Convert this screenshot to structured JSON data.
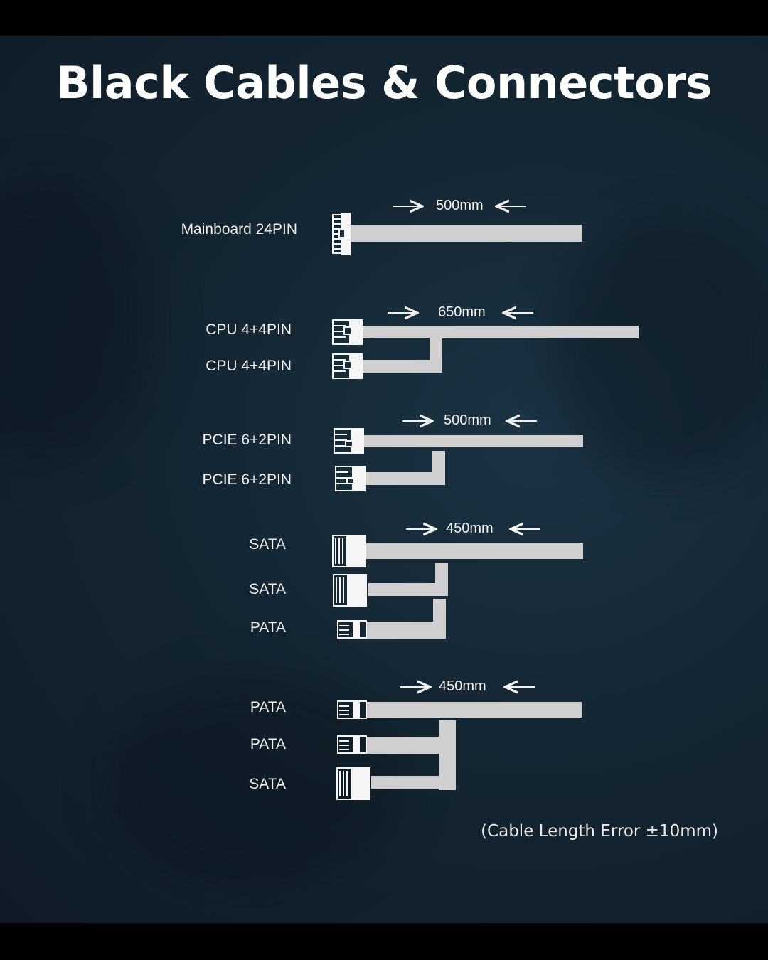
{
  "title": "Black Cables & Connectors",
  "footnote": "(Cable Length Error ±10mm)",
  "cable_color": "#cfcfcf",
  "groups": [
    {
      "length": "500mm",
      "connectors": [
        "Mainboard 24PIN"
      ]
    },
    {
      "length": "650mm",
      "connectors": [
        "CPU 4+4PIN",
        "CPU 4+4PIN"
      ]
    },
    {
      "length": "500mm",
      "connectors": [
        "PCIE 6+2PIN",
        "PCIE 6+2PIN"
      ]
    },
    {
      "length": "450mm",
      "connectors": [
        "SATA",
        "SATA",
        "PATA"
      ]
    },
    {
      "length": "450mm",
      "connectors": [
        "PATA",
        "PATA",
        "SATA"
      ]
    }
  ]
}
